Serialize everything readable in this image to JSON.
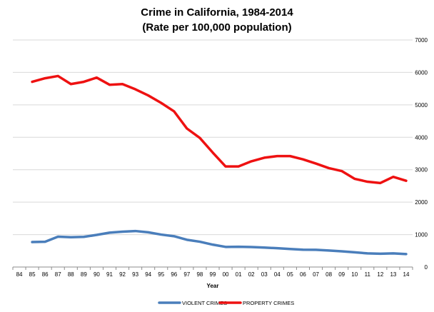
{
  "chart_data": {
    "type": "line",
    "title": "Crime in California, 1984-2014",
    "subtitle": "(Rate per 100,000 population)",
    "xlabel": "Year",
    "ylabel": "",
    "ylim": [
      0,
      7000
    ],
    "y_ticks": [
      0,
      1000,
      2000,
      3000,
      4000,
      5000,
      6000,
      7000
    ],
    "y_axis_side": "right",
    "grid": true,
    "legend_position": "bottom",
    "categories": [
      "84",
      "85",
      "86",
      "87",
      "88",
      "89",
      "90",
      "91",
      "92",
      "93",
      "94",
      "95",
      "96",
      "97",
      "98",
      "99",
      "00",
      "01",
      "02",
      "03",
      "04",
      "05",
      "06",
      "07",
      "08",
      "09",
      "10",
      "11",
      "12",
      "13",
      "14"
    ],
    "series": [
      {
        "name": "VIOLENT CRIMES",
        "color": "#4a7ebb",
        "values": [
          null,
          770,
          780,
          935,
          920,
          930,
          990,
          1060,
          1090,
          1110,
          1070,
          1000,
          950,
          840,
          780,
          690,
          620,
          625,
          615,
          600,
          580,
          555,
          535,
          530,
          510,
          485,
          455,
          420,
          410,
          420,
          400
        ]
      },
      {
        "name": "PROPERTY CRIMES",
        "color": "#ee1111",
        "values": [
          null,
          5710,
          5820,
          5890,
          5640,
          5710,
          5840,
          5620,
          5640,
          5480,
          5290,
          5060,
          4800,
          4270,
          3980,
          3530,
          3100,
          3100,
          3260,
          3370,
          3420,
          3420,
          3320,
          3190,
          3050,
          2960,
          2720,
          2630,
          2590,
          2780,
          2660
        ]
      }
    ]
  }
}
